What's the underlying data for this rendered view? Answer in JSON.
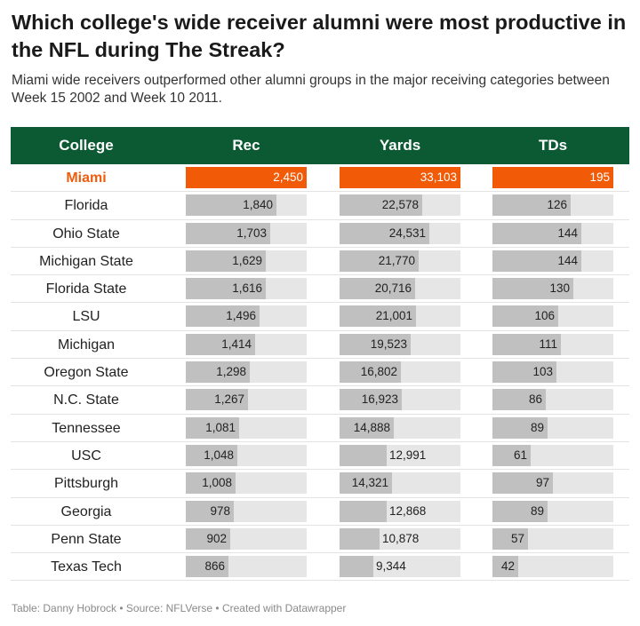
{
  "title": "Which college's wide receiver alumni were most productive in the NFL during The Streak?",
  "subtitle": "Miami wide receivers outperformed other alumni groups in the major receiving categories between Week 15 2002 and Week 10 2011.",
  "headers": {
    "college": "College",
    "rec": "Rec",
    "yards": "Yards",
    "tds": "TDs"
  },
  "footer": "Table: Danny Hobrock • Source: NFLVerse • Created with Datawrapper",
  "colors": {
    "header_bg": "#0b5a34",
    "highlight": "#f15a07",
    "bar": "#c0c0c0",
    "track": "#e6e6e6"
  },
  "chart_data": {
    "type": "table",
    "highlight_row": "Miami",
    "columns": [
      "College",
      "Rec",
      "Yards",
      "TDs"
    ],
    "rows": [
      {
        "college": "Miami",
        "rec": 2450,
        "yards": 33103,
        "tds": 195
      },
      {
        "college": "Florida",
        "rec": 1840,
        "yards": 22578,
        "tds": 126
      },
      {
        "college": "Ohio State",
        "rec": 1703,
        "yards": 24531,
        "tds": 144
      },
      {
        "college": "Michigan State",
        "rec": 1629,
        "yards": 21770,
        "tds": 144
      },
      {
        "college": "Florida State",
        "rec": 1616,
        "yards": 20716,
        "tds": 130
      },
      {
        "college": "LSU",
        "rec": 1496,
        "yards": 21001,
        "tds": 106
      },
      {
        "college": "Michigan",
        "rec": 1414,
        "yards": 19523,
        "tds": 111
      },
      {
        "college": "Oregon State",
        "rec": 1298,
        "yards": 16802,
        "tds": 103
      },
      {
        "college": "N.C. State",
        "rec": 1267,
        "yards": 16923,
        "tds": 86
      },
      {
        "college": "Tennessee",
        "rec": 1081,
        "yards": 14888,
        "tds": 89
      },
      {
        "college": "USC",
        "rec": 1048,
        "yards": 12991,
        "tds": 61
      },
      {
        "college": "Pittsburgh",
        "rec": 1008,
        "yards": 14321,
        "tds": 97
      },
      {
        "college": "Georgia",
        "rec": 978,
        "yards": 12868,
        "tds": 89
      },
      {
        "college": "Penn State",
        "rec": 902,
        "yards": 10878,
        "tds": 57
      },
      {
        "college": "Texas Tech",
        "rec": 866,
        "yards": 9344,
        "tds": 42
      }
    ]
  }
}
